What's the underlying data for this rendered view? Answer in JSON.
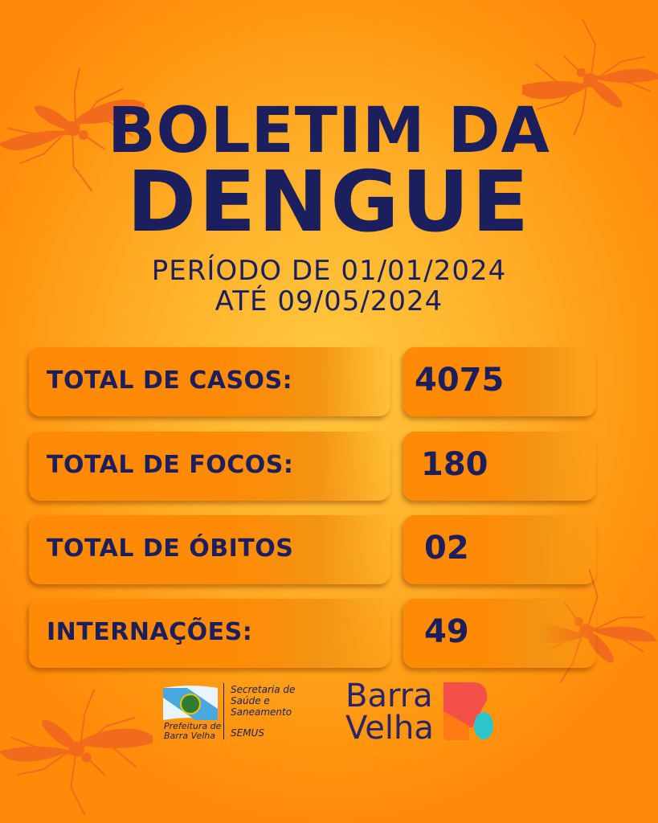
{
  "title": {
    "line1": "BOLETIM DA",
    "line2": "DENGUE"
  },
  "period": {
    "line1": "PERÍODO DE 01/01/2024",
    "line2": "ATÉ 09/05/2024"
  },
  "stats": [
    {
      "label": "TOTAL DE CASOS:",
      "value": "4075"
    },
    {
      "label": "TOTAL DE FOCOS:",
      "value": "180"
    },
    {
      "label": "TOTAL DE ÓBITOS",
      "value": "02"
    },
    {
      "label": "INTERNAÇÕES:",
      "value": "49"
    }
  ],
  "footer": {
    "prefeitura": {
      "line1": "Prefeitura de",
      "line2": "Barra Velha"
    },
    "secretaria": {
      "line1": "Secretaria de",
      "line2": "Saúde e",
      "line3": "Saneamento",
      "acronym": "SEMUS"
    },
    "brand": {
      "line1": "Barra",
      "line2": "Velha"
    }
  },
  "colors": {
    "background": "#ffb02a",
    "box": "#ff8a05",
    "text": "#1b1f5e",
    "mosquito": "#f26a1b"
  },
  "icons": [
    "mosquito-icon",
    "municipal-flag-icon",
    "barra-velha-logo-icon"
  ]
}
